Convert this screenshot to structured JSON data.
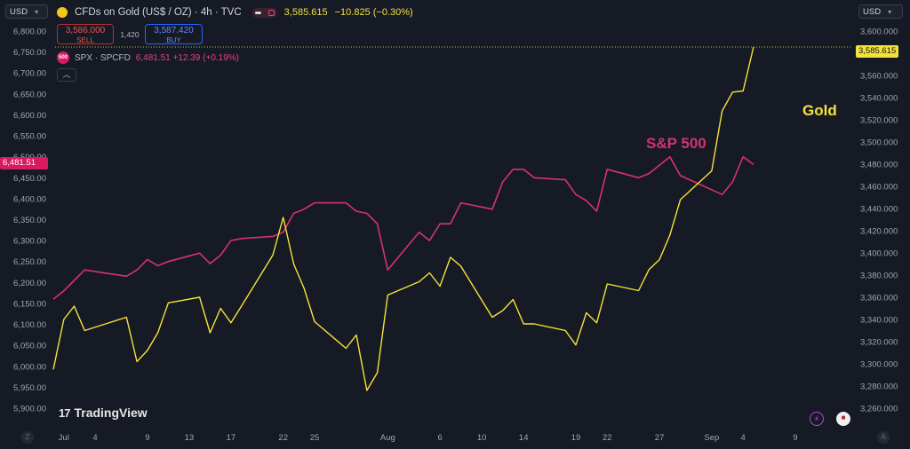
{
  "currency_left": "USD",
  "currency_right": "USD",
  "header": {
    "title": "CFDs on Gold (US$ / OZ) · 4h · TVC",
    "price": "3,585.615",
    "change": "−10.825 (−0.30%)"
  },
  "trade": {
    "sell_price": "3,586.000",
    "sell_label": "SELL",
    "spread": "1,420",
    "buy_price": "3,587.420",
    "buy_label": "BUY"
  },
  "spx_legend": {
    "badge": "500",
    "name": "SPX · SPCFD",
    "values": "6,481.51 +12.39 (+0.19%)"
  },
  "watermark": "TradingView",
  "annotations": {
    "sp500": "S&P 500",
    "gold": "Gold"
  },
  "colors": {
    "gold": "#f5e33b",
    "spx": "#d6326e",
    "background": "#161a25"
  },
  "icons": [
    "gold-coin-icon",
    "chevron-down-icon",
    "chevron-up-icon",
    "tradingview-logo-icon",
    "lightning-icon",
    "us-flag-icon"
  ],
  "chart_data": {
    "type": "line",
    "x_ticks": [
      "Jul",
      "4",
      "9",
      "13",
      "17",
      "22",
      "25",
      "Aug",
      "6",
      "10",
      "14",
      "19",
      "22",
      "27",
      "Sep",
      "4",
      "9"
    ],
    "left_axis": {
      "ticks": [
        "6,800.00",
        "6,750.00",
        "6,700.00",
        "6,650.00",
        "6,600.00",
        "6,550.00",
        "6,500.00",
        "6,450.00",
        "6,400.00",
        "6,350.00",
        "6,300.00",
        "6,250.00",
        "6,200.00",
        "6,150.00",
        "6,100.00",
        "6,050.00",
        "6,000.00",
        "5,950.00",
        "5,900.00"
      ],
      "range": [
        5900,
        6800
      ]
    },
    "right_axis": {
      "ticks": [
        "3,600.000",
        "3,580.000",
        "3,560.000",
        "3,540.000",
        "3,520.000",
        "3,500.000",
        "3,480.000",
        "3,460.000",
        "3,440.000",
        "3,420.000",
        "3,400.000",
        "3,380.000",
        "3,360.000",
        "3,340.000",
        "3,320.000",
        "3,300.000",
        "3,280.000",
        "3,260.000"
      ],
      "range": [
        3260,
        3600
      ]
    },
    "last_price_labels": {
      "gold": "3,585.615",
      "spx": "6,481.51"
    },
    "series": [
      {
        "name": "S&P 500",
        "axis": "left",
        "values": [
          [
            "2025-06-30",
            6160
          ],
          [
            "2025-07-01",
            6180
          ],
          [
            "2025-07-02",
            6205
          ],
          [
            "2025-07-03",
            6230
          ],
          [
            "2025-07-07",
            6215
          ],
          [
            "2025-07-08",
            6230
          ],
          [
            "2025-07-09",
            6255
          ],
          [
            "2025-07-10",
            6240
          ],
          [
            "2025-07-11",
            6250
          ],
          [
            "2025-07-14",
            6270
          ],
          [
            "2025-07-15",
            6245
          ],
          [
            "2025-07-16",
            6265
          ],
          [
            "2025-07-17",
            6300
          ],
          [
            "2025-07-18",
            6305
          ],
          [
            "2025-07-21",
            6310
          ],
          [
            "2025-07-22",
            6320
          ],
          [
            "2025-07-23",
            6365
          ],
          [
            "2025-07-24",
            6375
          ],
          [
            "2025-07-25",
            6390
          ],
          [
            "2025-07-28",
            6390
          ],
          [
            "2025-07-29",
            6370
          ],
          [
            "2025-07-30",
            6365
          ],
          [
            "2025-07-31",
            6340
          ],
          [
            "2025-08-01",
            6230
          ],
          [
            "2025-08-04",
            6320
          ],
          [
            "2025-08-05",
            6300
          ],
          [
            "2025-08-06",
            6340
          ],
          [
            "2025-08-07",
            6340
          ],
          [
            "2025-08-08",
            6390
          ],
          [
            "2025-08-11",
            6375
          ],
          [
            "2025-08-12",
            6440
          ],
          [
            "2025-08-13",
            6470
          ],
          [
            "2025-08-14",
            6470
          ],
          [
            "2025-08-15",
            6450
          ],
          [
            "2025-08-18",
            6445
          ],
          [
            "2025-08-19",
            6410
          ],
          [
            "2025-08-20",
            6395
          ],
          [
            "2025-08-21",
            6370
          ],
          [
            "2025-08-22",
            6470
          ],
          [
            "2025-08-25",
            6450
          ],
          [
            "2025-08-26",
            6460
          ],
          [
            "2025-08-27",
            6480
          ],
          [
            "2025-08-28",
            6500
          ],
          [
            "2025-08-29",
            6455
          ],
          [
            "2025-09-02",
            6410
          ],
          [
            "2025-09-03",
            6440
          ],
          [
            "2025-09-04",
            6500
          ],
          [
            "2025-09-05",
            6481.51
          ]
        ]
      },
      {
        "name": "Gold",
        "axis": "right",
        "values": [
          [
            "2025-06-30",
            3295
          ],
          [
            "2025-07-01",
            3340
          ],
          [
            "2025-07-02",
            3352
          ],
          [
            "2025-07-03",
            3330
          ],
          [
            "2025-07-07",
            3342
          ],
          [
            "2025-07-08",
            3302
          ],
          [
            "2025-07-09",
            3312
          ],
          [
            "2025-07-10",
            3328
          ],
          [
            "2025-07-11",
            3355
          ],
          [
            "2025-07-14",
            3360
          ],
          [
            "2025-07-15",
            3328
          ],
          [
            "2025-07-16",
            3350
          ],
          [
            "2025-07-17",
            3337
          ],
          [
            "2025-07-18",
            3352
          ],
          [
            "2025-07-21",
            3398
          ],
          [
            "2025-07-22",
            3432
          ],
          [
            "2025-07-23",
            3390
          ],
          [
            "2025-07-24",
            3368
          ],
          [
            "2025-07-25",
            3338
          ],
          [
            "2025-07-28",
            3314
          ],
          [
            "2025-07-29",
            3326
          ],
          [
            "2025-07-30",
            3276
          ],
          [
            "2025-07-31",
            3292
          ],
          [
            "2025-08-01",
            3362
          ],
          [
            "2025-08-04",
            3374
          ],
          [
            "2025-08-05",
            3382
          ],
          [
            "2025-08-06",
            3370
          ],
          [
            "2025-08-07",
            3396
          ],
          [
            "2025-08-08",
            3388
          ],
          [
            "2025-08-11",
            3342
          ],
          [
            "2025-08-12",
            3348
          ],
          [
            "2025-08-13",
            3358
          ],
          [
            "2025-08-14",
            3336
          ],
          [
            "2025-08-15",
            3336
          ],
          [
            "2025-08-18",
            3330
          ],
          [
            "2025-08-19",
            3317
          ],
          [
            "2025-08-20",
            3346
          ],
          [
            "2025-08-21",
            3337
          ],
          [
            "2025-08-22",
            3372
          ],
          [
            "2025-08-25",
            3366
          ],
          [
            "2025-08-26",
            3385
          ],
          [
            "2025-08-27",
            3394
          ],
          [
            "2025-08-28",
            3416
          ],
          [
            "2025-08-29",
            3448
          ],
          [
            "2025-09-01",
            3474
          ],
          [
            "2025-09-02",
            3528
          ],
          [
            "2025-09-03",
            3545
          ],
          [
            "2025-09-04",
            3546
          ],
          [
            "2025-09-05",
            3585.615
          ]
        ]
      }
    ]
  }
}
